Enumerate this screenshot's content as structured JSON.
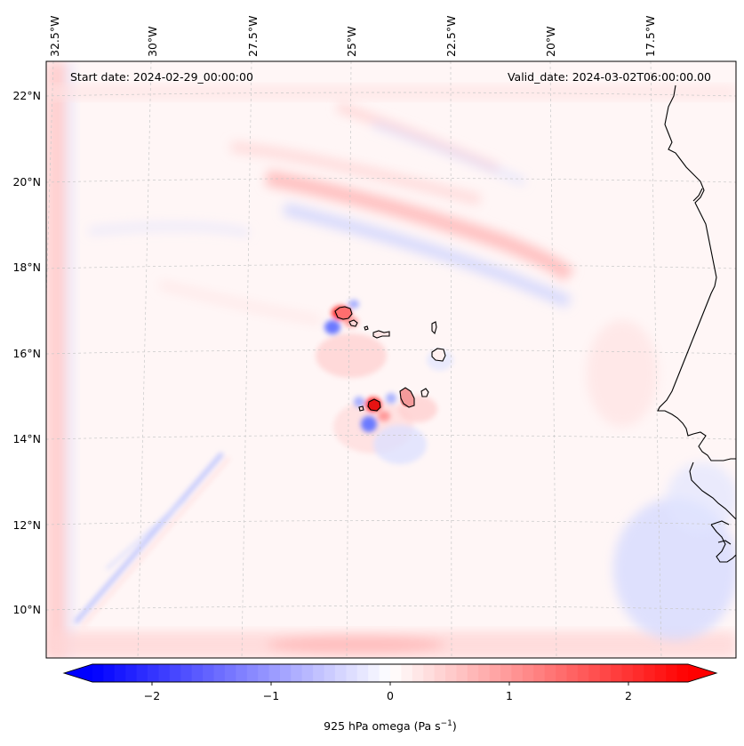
{
  "map": {
    "start_date": "Start date: 2024-02-29_00:00:00",
    "valid_date": "Valid_date: 2024-03-02T06:00:00.00",
    "longitude_ticks": [
      "32.5°W",
      "30°W",
      "27.5°W",
      "25°W",
      "22.5°W",
      "20°W",
      "17.5°W"
    ],
    "latitude_ticks": [
      "22°N",
      "20°N",
      "18°N",
      "16°N",
      "14°N",
      "12°N",
      "10°N"
    ],
    "variable": "925 hPa omega",
    "units_base": "(Pa s",
    "units_exp": "−1",
    "units_close": ")",
    "colormap": "bwr",
    "colors": {
      "negative": "#0000ff",
      "neutral": "#ffffff",
      "positive": "#ff0000",
      "coast": "#000000",
      "grid": "#c8c8c8"
    }
  },
  "colorbar": {
    "tick_labels": [
      "−2",
      "−1",
      "0",
      "1",
      "2"
    ],
    "range": [
      -2.7,
      2.7
    ],
    "levels": 54
  },
  "chart_data": {
    "type": "heatmap",
    "title": "",
    "field": "925 hPa omega",
    "units": "Pa s^-1",
    "vmin": -2.7,
    "vmax": 2.7,
    "extent_lon": [
      -33.0,
      -15.0
    ],
    "extent_lat": [
      9.0,
      22.7
    ],
    "features": [
      {
        "name": "Santo Antao lee dipole",
        "lon": -25.1,
        "lat": 16.9,
        "max": 2.5,
        "min": -0.8
      },
      {
        "name": "Fogo lee dipole",
        "lon": -24.4,
        "lat": 14.8,
        "max": 2.6,
        "min": -0.9
      },
      {
        "name": "Santiago island",
        "lon": -23.6,
        "lat": 15.1,
        "max": 0.9
      },
      {
        "name": "NW-SE banded wave train",
        "lon_range": [
          -28,
          -19
        ],
        "lat_range": [
          17.5,
          20
        ],
        "amplitude": 0.6
      },
      {
        "name": "SW ascent streak",
        "lon_range": [
          -32,
          -27
        ],
        "lat_range": [
          9.5,
          13.5
        ],
        "amplitude": -0.4
      },
      {
        "name": "Coastal descent",
        "lon_range": [
          -17,
          -15
        ],
        "lat_range": [
          10,
          13
        ],
        "amplitude": -0.3
      }
    ]
  }
}
